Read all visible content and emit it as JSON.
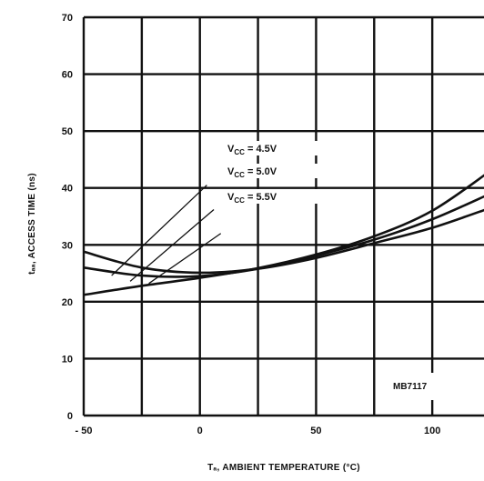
{
  "chart_data": {
    "type": "line",
    "xlabel": "Tₐ, AMBIENT TEMPERATURE (°C)",
    "ylabel": "tₐₐ, ACCESS TIME (ns)",
    "xlim": [
      -50,
      125
    ],
    "ylim": [
      0,
      70
    ],
    "xticks": [
      {
        "value": -50,
        "label": "- 50"
      },
      {
        "value": 0,
        "label": "0"
      },
      {
        "value": 50,
        "label": "50"
      },
      {
        "value": 100,
        "label": "100"
      }
    ],
    "yticks": [
      0,
      10,
      20,
      30,
      40,
      50,
      60,
      70
    ],
    "x_gridlines": [
      -50,
      -25,
      0,
      25,
      50,
      75,
      100,
      125
    ],
    "y_gridlines": [
      0,
      10,
      20,
      30,
      40,
      50,
      60,
      70
    ],
    "grid": true,
    "series": [
      {
        "name": "V_CC = 4.5V",
        "x": [
          -50,
          -25,
          0,
          25,
          50,
          75,
          100,
          125
        ],
        "y": [
          21.2,
          22.8,
          24.2,
          25.9,
          28.3,
          31.5,
          36.0,
          43.0
        ]
      },
      {
        "name": "V_CC = 5.0V",
        "x": [
          -50,
          -25,
          0,
          25,
          50,
          75,
          100,
          125
        ],
        "y": [
          26.0,
          24.6,
          24.5,
          25.8,
          28.1,
          30.9,
          34.5,
          39.0
        ]
      },
      {
        "name": "V_CC = 5.5V",
        "x": [
          -50,
          -25,
          0,
          25,
          50,
          75,
          100,
          125
        ],
        "y": [
          28.8,
          26.0,
          25.1,
          25.8,
          27.7,
          30.3,
          33.0,
          36.5
        ]
      }
    ],
    "annotations": [
      {
        "label": "V",
        "sub": "CC",
        "value": " = 4.5V"
      },
      {
        "label": "V",
        "sub": "CC",
        "value": " = 5.0V"
      },
      {
        "label": "V",
        "sub": "CC",
        "value": " = 5.5V"
      }
    ],
    "figure_id": "MB7117",
    "colors": {
      "line": "#111111",
      "grid": "#111111",
      "background": "#ffffff"
    }
  }
}
